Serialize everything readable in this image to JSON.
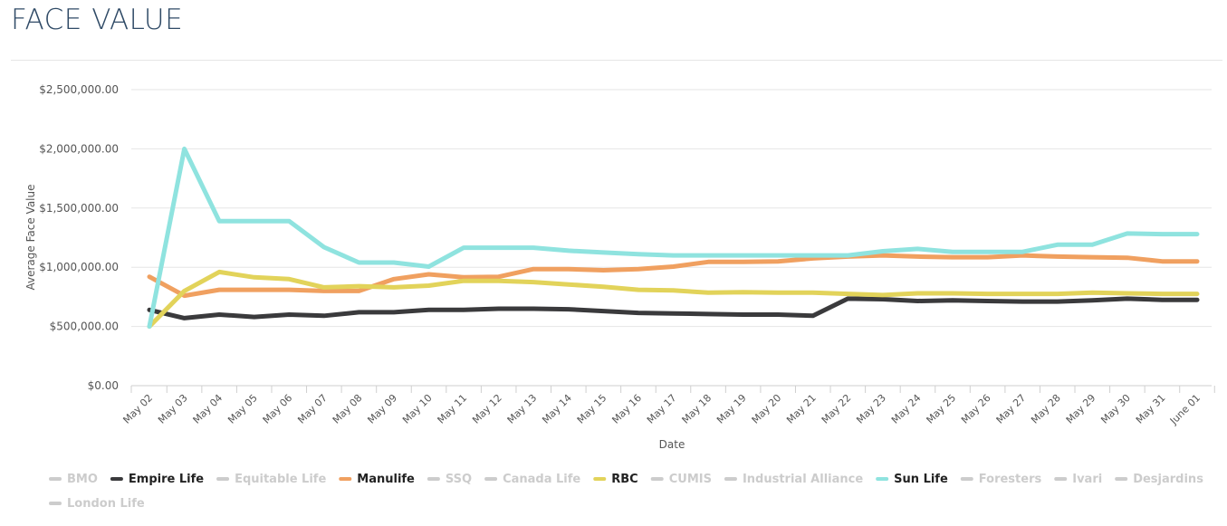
{
  "header": {
    "title": "FACE VALUE"
  },
  "chart_data": {
    "type": "line",
    "title": "FACE VALUE",
    "xlabel": "Date",
    "ylabel": "Average Face Value",
    "ylim": [
      0,
      2500000
    ],
    "yticks": [
      0,
      500000,
      1000000,
      1500000,
      2000000,
      2500000
    ],
    "ytick_labels": [
      "$0.00",
      "$500,000.00",
      "$1,000,000.00",
      "$1,500,000.00",
      "$2,000,000.00",
      "$2,500,000.00"
    ],
    "grid": true,
    "legend_position": "bottom",
    "categories": [
      "May 02",
      "May 03",
      "May 04",
      "May 05",
      "May 06",
      "May 07",
      "May 08",
      "May 09",
      "May 10",
      "May 11",
      "May 12",
      "May 13",
      "May 14",
      "May 15",
      "May 16",
      "May 17",
      "May 18",
      "May 19",
      "May 20",
      "May 21",
      "May 22",
      "May 23",
      "May 24",
      "May 25",
      "May 26",
      "May 27",
      "May 28",
      "May 29",
      "May 30",
      "May 31",
      "June 01"
    ],
    "series": [
      {
        "name": "Empire Life",
        "color": "#3a3a3c",
        "visible": true,
        "values": [
          640000,
          570000,
          600000,
          580000,
          600000,
          590000,
          620000,
          620000,
          640000,
          640000,
          650000,
          650000,
          645000,
          630000,
          615000,
          610000,
          605000,
          600000,
          600000,
          590000,
          735000,
          730000,
          715000,
          720000,
          715000,
          710000,
          710000,
          720000,
          735000,
          725000,
          725000
        ]
      },
      {
        "name": "Manulife",
        "color": "#f0a060",
        "visible": true,
        "values": [
          920000,
          760000,
          810000,
          810000,
          810000,
          800000,
          800000,
          900000,
          940000,
          915000,
          920000,
          985000,
          985000,
          975000,
          985000,
          1005000,
          1045000,
          1045000,
          1050000,
          1075000,
          1090000,
          1100000,
          1090000,
          1085000,
          1085000,
          1100000,
          1090000,
          1085000,
          1080000,
          1050000,
          1050000
        ]
      },
      {
        "name": "RBC",
        "color": "#e2d35a",
        "visible": true,
        "values": [
          500000,
          800000,
          960000,
          915000,
          900000,
          830000,
          840000,
          830000,
          845000,
          885000,
          885000,
          875000,
          855000,
          835000,
          810000,
          805000,
          785000,
          790000,
          785000,
          785000,
          775000,
          765000,
          780000,
          780000,
          775000,
          775000,
          775000,
          785000,
          780000,
          775000,
          775000
        ]
      },
      {
        "name": "Sun Life",
        "color": "#8fe3df",
        "visible": true,
        "values": [
          500000,
          2000000,
          1390000,
          1390000,
          1390000,
          1170000,
          1040000,
          1040000,
          1005000,
          1165000,
          1165000,
          1165000,
          1140000,
          1125000,
          1110000,
          1100000,
          1100000,
          1100000,
          1100000,
          1100000,
          1100000,
          1135000,
          1155000,
          1130000,
          1130000,
          1130000,
          1190000,
          1190000,
          1285000,
          1280000,
          1280000
        ]
      }
    ],
    "legend": [
      {
        "name": "BMO",
        "color": "#cccccc",
        "active": false
      },
      {
        "name": "Empire Life",
        "color": "#3a3a3c",
        "active": true
      },
      {
        "name": "Equitable Life",
        "color": "#cccccc",
        "active": false
      },
      {
        "name": "Manulife",
        "color": "#f0a060",
        "active": true
      },
      {
        "name": "SSQ",
        "color": "#cccccc",
        "active": false
      },
      {
        "name": "Canada Life",
        "color": "#cccccc",
        "active": false
      },
      {
        "name": "RBC",
        "color": "#e2d35a",
        "active": true
      },
      {
        "name": "CUMIS",
        "color": "#cccccc",
        "active": false
      },
      {
        "name": "Industrial Alliance",
        "color": "#cccccc",
        "active": false
      },
      {
        "name": "Sun Life",
        "color": "#8fe3df",
        "active": true
      },
      {
        "name": "Foresters",
        "color": "#cccccc",
        "active": false
      },
      {
        "name": "Ivari",
        "color": "#cccccc",
        "active": false
      },
      {
        "name": "Desjardins",
        "color": "#cccccc",
        "active": false
      },
      {
        "name": "London Life",
        "color": "#cccccc",
        "active": false
      }
    ]
  }
}
